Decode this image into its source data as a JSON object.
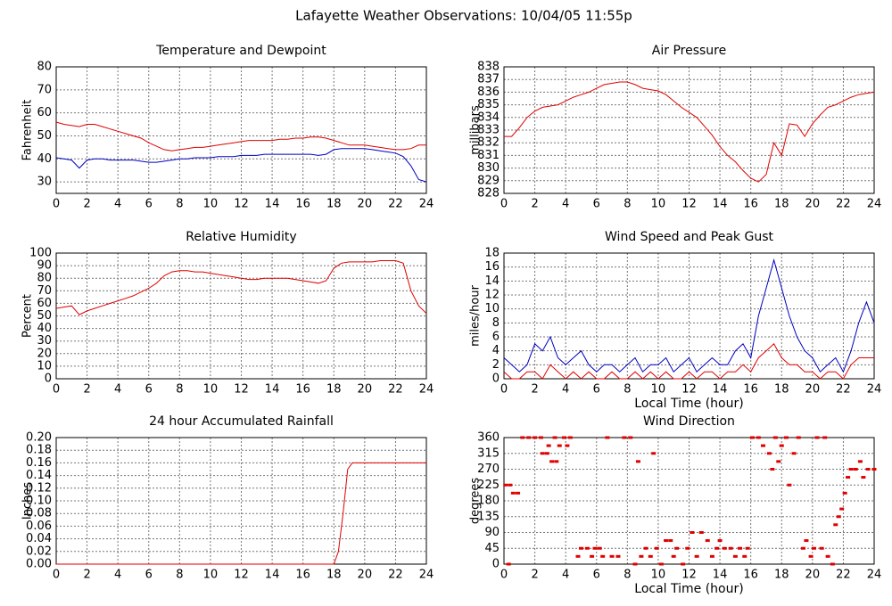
{
  "title": "Lafayette Weather Observations: 10/04/05 11:55p",
  "chart_data": [
    {
      "type": "line",
      "title": "Temperature and Dewpoint",
      "ylabel": "Fahrenheit",
      "x": [
        0,
        0.5,
        1,
        1.5,
        2,
        2.5,
        3,
        3.5,
        4,
        4.5,
        5,
        5.5,
        6,
        6.5,
        7,
        7.5,
        8,
        8.5,
        9,
        9.5,
        10,
        10.5,
        11,
        11.5,
        12,
        12.5,
        13,
        13.5,
        14,
        14.5,
        15,
        15.5,
        16,
        16.5,
        17,
        17.5,
        18,
        18.5,
        19,
        19.5,
        20,
        20.5,
        21,
        21.5,
        22,
        22.5,
        23,
        23.5,
        24
      ],
      "series": [
        {
          "color": "#e00000",
          "values": [
            56,
            55,
            54.5,
            54,
            55,
            55,
            54,
            53,
            52,
            51,
            50,
            49,
            47,
            45.5,
            44,
            43.5,
            44,
            44.5,
            45,
            45,
            45.5,
            46,
            46.5,
            47,
            47.5,
            48,
            48,
            48,
            48,
            48.5,
            48.5,
            49,
            49,
            49.5,
            49.5,
            49,
            48,
            47,
            46,
            46,
            46,
            45.5,
            45,
            44.5,
            44,
            44,
            44.5,
            46,
            46
          ]
        },
        {
          "color": "#0000c0",
          "values": [
            40.5,
            40,
            39.5,
            36,
            39.5,
            40,
            40,
            39.5,
            39.5,
            39.5,
            39.5,
            39,
            38.5,
            38.5,
            39,
            39.5,
            40,
            40,
            40.5,
            40.5,
            40.5,
            41,
            41,
            41,
            41.5,
            41.5,
            41.5,
            42,
            42,
            42,
            42,
            42,
            42,
            42,
            41.5,
            42,
            44,
            44.5,
            44.5,
            44.5,
            44.5,
            44,
            43.5,
            43,
            42.5,
            41,
            37,
            31,
            30
          ]
        }
      ],
      "xlim": [
        0,
        24
      ],
      "ylim": [
        25,
        80
      ],
      "xticks": [
        0,
        2,
        4,
        6,
        8,
        10,
        12,
        14,
        16,
        18,
        20,
        22,
        24
      ],
      "yticks": [
        30,
        40,
        50,
        60,
        70,
        80
      ],
      "grid": true
    },
    {
      "type": "line",
      "title": "Air Pressure",
      "ylabel": "millibars",
      "x": [
        0,
        0.5,
        1,
        1.5,
        2,
        2.5,
        3,
        3.5,
        4,
        4.5,
        5,
        5.5,
        6,
        6.5,
        7,
        7.5,
        8,
        8.5,
        9,
        9.5,
        10,
        10.5,
        11,
        11.5,
        12,
        12.5,
        13,
        13.5,
        14,
        14.5,
        15,
        15.5,
        16,
        16.5,
        17,
        17.5,
        18,
        18.5,
        19,
        19.5,
        20,
        20.5,
        21,
        21.5,
        22,
        22.5,
        23,
        23.5,
        24
      ],
      "series": [
        {
          "color": "#e00000",
          "values": [
            832.5,
            832.5,
            833.2,
            834,
            834.5,
            834.8,
            834.9,
            835,
            835.3,
            835.6,
            835.8,
            836,
            836.3,
            836.6,
            836.7,
            836.8,
            836.8,
            836.6,
            836.3,
            836.2,
            836.1,
            835.8,
            835.3,
            834.8,
            834.4,
            834,
            833.3,
            832.6,
            831.7,
            831,
            830.5,
            829.8,
            829.2,
            828.9,
            829.5,
            832,
            831,
            833.5,
            833.4,
            832.5,
            833.5,
            834.2,
            834.8,
            835,
            835.3,
            835.6,
            835.8,
            835.9,
            836
          ]
        }
      ],
      "xlim": [
        0,
        24
      ],
      "ylim": [
        828,
        838
      ],
      "xticks": [
        0,
        2,
        4,
        6,
        8,
        10,
        12,
        14,
        16,
        18,
        20,
        22,
        24
      ],
      "yticks": [
        828,
        829,
        830,
        831,
        832,
        833,
        834,
        835,
        836,
        837,
        838
      ],
      "grid": true
    },
    {
      "type": "line",
      "title": "Relative Humidity",
      "ylabel": "Percent",
      "x": [
        0,
        0.5,
        1,
        1.5,
        2,
        2.5,
        3,
        3.5,
        4,
        4.5,
        5,
        5.5,
        6,
        6.5,
        7,
        7.5,
        8,
        8.5,
        9,
        9.5,
        10,
        10.5,
        11,
        11.5,
        12,
        12.5,
        13,
        13.5,
        14,
        14.5,
        15,
        15.5,
        16,
        16.5,
        17,
        17.5,
        18,
        18.5,
        19,
        19.5,
        20,
        20.5,
        21,
        21.5,
        22,
        22.5,
        23,
        23.5,
        24
      ],
      "series": [
        {
          "color": "#e00000",
          "values": [
            56,
            57,
            58,
            51,
            54,
            56,
            58,
            60,
            62,
            64,
            66,
            69,
            72,
            76,
            82,
            85,
            86,
            86,
            85,
            85,
            84,
            83,
            82,
            81,
            80,
            79,
            79,
            80,
            80,
            80,
            80,
            79,
            78,
            77,
            76,
            78,
            88,
            92,
            93,
            93,
            93,
            93,
            94,
            94,
            94,
            92,
            70,
            58,
            52
          ]
        }
      ],
      "xlim": [
        0,
        24
      ],
      "ylim": [
        0,
        100
      ],
      "xticks": [
        0,
        2,
        4,
        6,
        8,
        10,
        12,
        14,
        16,
        18,
        20,
        22,
        24
      ],
      "yticks": [
        0,
        10,
        20,
        30,
        40,
        50,
        60,
        70,
        80,
        90,
        100
      ],
      "grid": true
    },
    {
      "type": "line",
      "title": "Wind Speed and Peak Gust",
      "ylabel": "miles/hour",
      "xlabel": "Local Time (hour)",
      "x": [
        0,
        0.5,
        1,
        1.5,
        2,
        2.5,
        3,
        3.5,
        4,
        4.5,
        5,
        5.5,
        6,
        6.5,
        7,
        7.5,
        8,
        8.5,
        9,
        9.5,
        10,
        10.5,
        11,
        11.5,
        12,
        12.5,
        13,
        13.5,
        14,
        14.5,
        15,
        15.5,
        16,
        16.5,
        17,
        17.5,
        18,
        18.5,
        19,
        19.5,
        20,
        20.5,
        21,
        21.5,
        22,
        22.5,
        23,
        23.5,
        24
      ],
      "series": [
        {
          "color": "#0000c0",
          "values": [
            3,
            2,
            1,
            2,
            5,
            4,
            6,
            3,
            2,
            3,
            4,
            2,
            1,
            2,
            2,
            1,
            2,
            3,
            1,
            2,
            2,
            3,
            1,
            2,
            3,
            1,
            2,
            3,
            2,
            2,
            4,
            5,
            3,
            9,
            13,
            17,
            13,
            9,
            6,
            4,
            3,
            1,
            2,
            3,
            1,
            4,
            8,
            11,
            8
          ]
        },
        {
          "color": "#e00000",
          "values": [
            1,
            0,
            0,
            1,
            1,
            0,
            2,
            1,
            0,
            1,
            0,
            1,
            0,
            0,
            1,
            0,
            0,
            1,
            0,
            1,
            0,
            1,
            0,
            0,
            1,
            0,
            1,
            1,
            0,
            1,
            1,
            2,
            1,
            3,
            4,
            5,
            3,
            2,
            2,
            1,
            1,
            0,
            1,
            1,
            0,
            2,
            3,
            3,
            3
          ]
        }
      ],
      "xlim": [
        0,
        24
      ],
      "ylim": [
        0,
        18
      ],
      "xticks": [
        0,
        2,
        4,
        6,
        8,
        10,
        12,
        14,
        16,
        18,
        20,
        22,
        24
      ],
      "yticks": [
        0,
        2,
        4,
        6,
        8,
        10,
        12,
        14,
        16,
        18
      ],
      "grid": true
    },
    {
      "type": "line",
      "title": "24 hour Accumulated Rainfall",
      "ylabel": "Inches",
      "x": [
        0,
        18,
        18.3,
        18.6,
        18.9,
        19.2,
        24
      ],
      "series": [
        {
          "color": "#e00000",
          "values": [
            0,
            0,
            0.02,
            0.08,
            0.15,
            0.16,
            0.16
          ]
        }
      ],
      "xlim": [
        0,
        24
      ],
      "ylim": [
        0,
        0.2
      ],
      "xticks": [
        0,
        2,
        4,
        6,
        8,
        10,
        12,
        14,
        16,
        18,
        20,
        22,
        24
      ],
      "yticks": [
        {
          "value": 0,
          "label": "0.00"
        },
        {
          "value": 0.02,
          "label": "0.02"
        },
        {
          "value": 0.04,
          "label": "0.04"
        },
        {
          "value": 0.06,
          "label": "0.06"
        },
        {
          "value": 0.08,
          "label": "0.08"
        },
        {
          "value": 0.1,
          "label": "0.10"
        },
        {
          "value": 0.12,
          "label": "0.12"
        },
        {
          "value": 0.14,
          "label": "0.14"
        },
        {
          "value": 0.16,
          "label": "0.16"
        },
        {
          "value": 0.18,
          "label": "0.18"
        },
        {
          "value": 0.2,
          "label": "0.20"
        }
      ],
      "grid": true
    },
    {
      "type": "scatter",
      "title": "Wind Direction",
      "ylabel": "degrees",
      "xlabel": "Local Time (hour)",
      "x": [
        0.1,
        0.4,
        0.3,
        0.6,
        0.9,
        1.2,
        1.6,
        2,
        2.4,
        2.5,
        2.8,
        2.9,
        3.1,
        3.4,
        3.3,
        3.6,
        3.9,
        4.1,
        4.3,
        4.8,
        5,
        5.4,
        5.7,
        5.9,
        6.2,
        6.4,
        6.7,
        7,
        7.4,
        7.8,
        8.2,
        8.5,
        8.7,
        8.9,
        9.2,
        9.5,
        9.7,
        9.9,
        10.2,
        10.5,
        10.8,
        11,
        11.2,
        11.6,
        11.9,
        12.2,
        12.5,
        12.8,
        13.2,
        13.5,
        13.8,
        14,
        14.3,
        14.7,
        15,
        15.3,
        15.6,
        15.8,
        16.1,
        16.5,
        16.8,
        17.2,
        17.4,
        17.6,
        17.8,
        18,
        18.3,
        18.5,
        18.8,
        19.1,
        19.4,
        19.6,
        19.9,
        20.1,
        20.3,
        20.6,
        20.8,
        21,
        21.3,
        21.5,
        21.7,
        21.9,
        22.1,
        22.3,
        22.5,
        22.8,
        23.1,
        23.3,
        23.6,
        24
      ],
      "series": [
        {
          "color": "#e00000",
          "values": [
            225,
            225,
            0,
            202,
            202,
            360,
            360,
            360,
            360,
            315,
            315,
            337,
            292,
            292,
            360,
            337,
            360,
            337,
            360,
            22,
            45,
            45,
            22,
            45,
            45,
            22,
            360,
            22,
            22,
            360,
            360,
            0,
            292,
            22,
            45,
            22,
            315,
            45,
            0,
            67,
            67,
            22,
            45,
            0,
            45,
            90,
            22,
            90,
            67,
            22,
            45,
            67,
            45,
            45,
            22,
            45,
            22,
            45,
            360,
            360,
            337,
            315,
            270,
            360,
            292,
            337,
            360,
            225,
            315,
            360,
            45,
            67,
            22,
            45,
            360,
            45,
            360,
            22,
            0,
            112,
            135,
            157,
            202,
            247,
            270,
            270,
            292,
            247,
            270,
            270
          ]
        }
      ],
      "xlim": [
        0,
        24
      ],
      "ylim": [
        0,
        360
      ],
      "xticks": [
        0,
        2,
        4,
        6,
        8,
        10,
        12,
        14,
        16,
        18,
        20,
        22,
        24
      ],
      "yticks": [
        0,
        45,
        90,
        135,
        180,
        225,
        270,
        315,
        360
      ],
      "grid": true
    }
  ]
}
